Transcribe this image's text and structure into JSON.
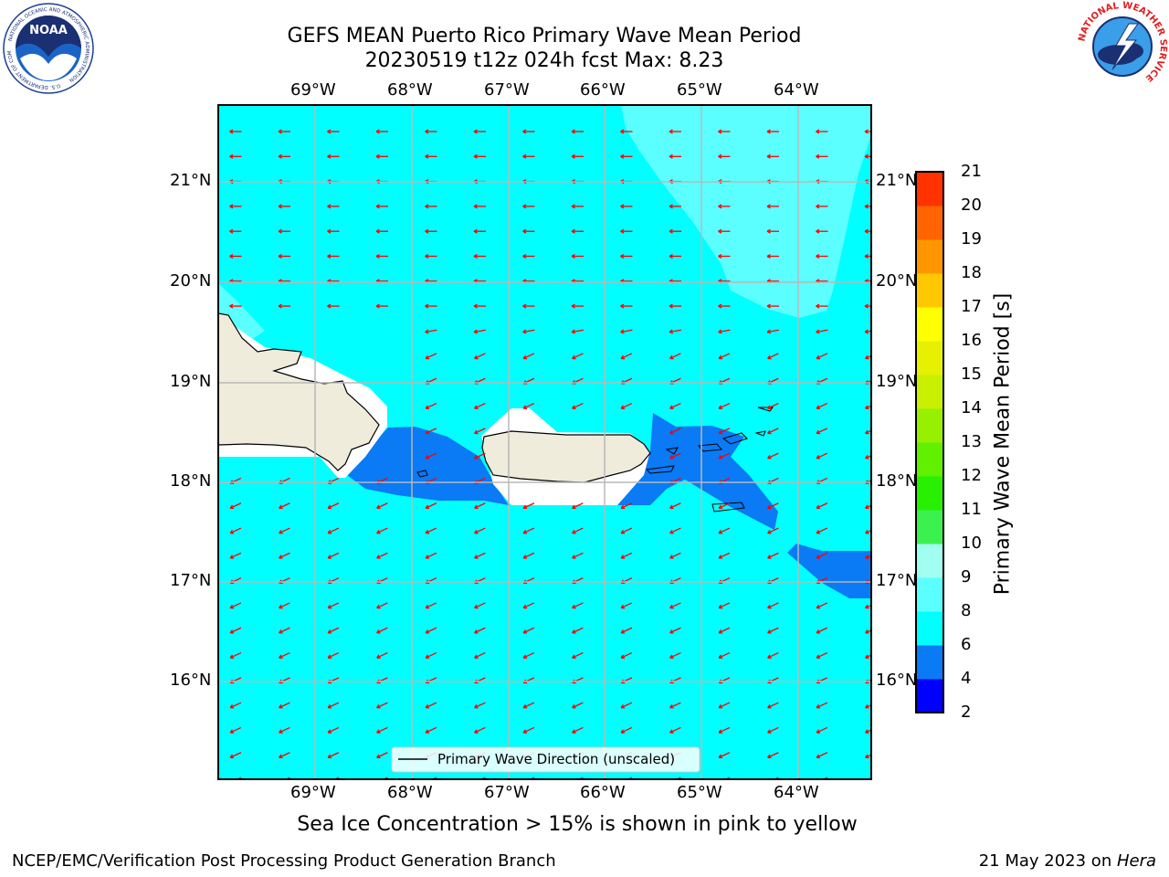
{
  "header": {
    "title_line1": "GEFS MEAN Puerto Rico Primary Wave Mean Period",
    "title_line2": "20230519 t12z 024h fcst   Max: 8.23"
  },
  "logos": {
    "noaa_text": "NOAA",
    "noaa_ring_text": "NATIONAL OCEANIC AND ATMOSPHERIC ADMINISTRATION",
    "noaa_ring_bottom": "U.S. DEPARTMENT OF COMMERCE",
    "nws_ring_text": "NATIONAL WEATHER SERVICE"
  },
  "map": {
    "lon_labels": [
      "69°W",
      "68°W",
      "67°W",
      "66°W",
      "65°W",
      "64°W"
    ],
    "lat_labels": [
      "21°N",
      "20°N",
      "19°N",
      "18°N",
      "17°N",
      "16°N"
    ],
    "legend_label": "Primary Wave Direction (unscaled)",
    "arrow_color": "#ff0000",
    "land_color": "#efecdc",
    "colors": {
      "period_4_6": "#0a7af5",
      "period_6_8": "#00ffff",
      "period_8_9": "#5cffff",
      "period_9_10": "#a0fff0"
    }
  },
  "colorbar": {
    "label": "Primary Wave Mean Period [s]",
    "ticks": [
      "2",
      "4",
      "6",
      "8",
      "9",
      "10",
      "11",
      "12",
      "13",
      "14",
      "15",
      "16",
      "17",
      "18",
      "19",
      "20",
      "21"
    ],
    "colors": [
      "#0000ff",
      "#0a7af5",
      "#00ffff",
      "#5cffff",
      "#a0fff0",
      "#3cf050",
      "#28f000",
      "#60f000",
      "#96f000",
      "#c8f000",
      "#e6f000",
      "#ffff00",
      "#ffc800",
      "#ff9600",
      "#ff6400",
      "#ff3200",
      "#ff0000"
    ]
  },
  "caption": "Sea Ice Concentration > 15% is shown in pink to yellow",
  "footer": {
    "left": "NCEP/EMC/Verification Post Processing Product Generation Branch",
    "right_prefix": "21 May 2023 on ",
    "right_machine": "Hera"
  }
}
